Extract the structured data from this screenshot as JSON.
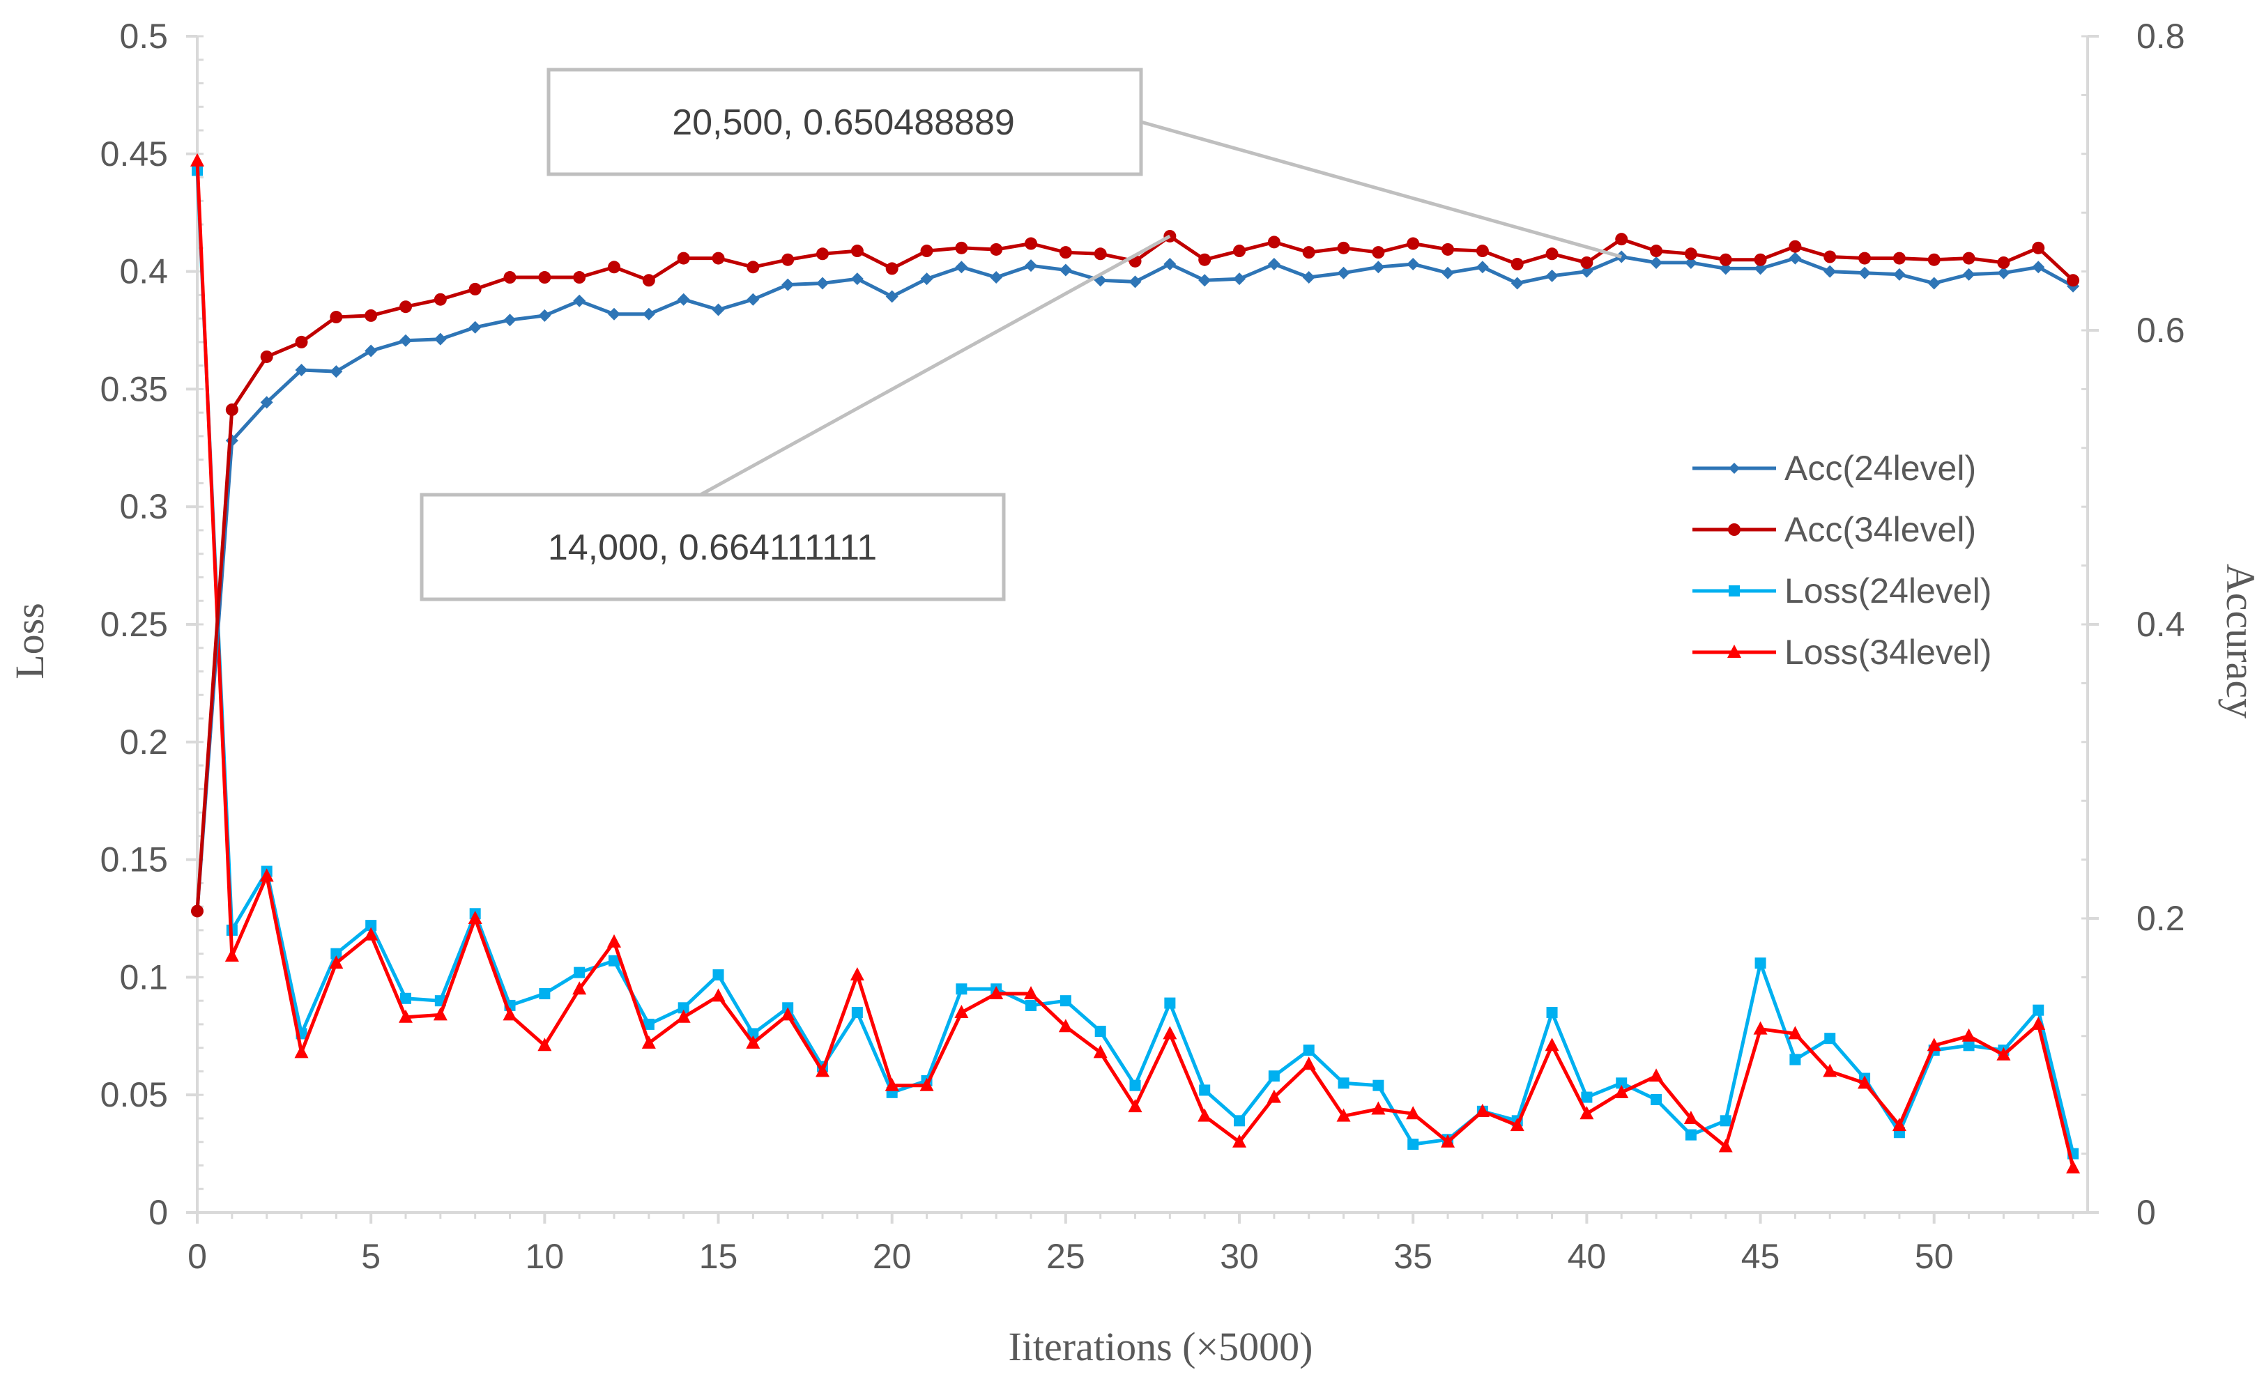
{
  "chart_data": {
    "type": "line",
    "title": "",
    "xlabel": "Iiterations (×5000)",
    "ylabel": "Loss",
    "y2label": "Accuracy",
    "x": [
      0,
      1,
      2,
      3,
      4,
      5,
      6,
      7,
      8,
      9,
      10,
      11,
      12,
      13,
      14,
      15,
      16,
      17,
      18,
      19,
      20,
      21,
      22,
      23,
      24,
      25,
      26,
      27,
      28,
      29,
      30,
      31,
      32,
      33,
      34,
      35,
      36,
      37,
      38,
      39,
      40,
      41,
      42,
      43,
      44,
      45,
      46,
      47,
      48,
      49,
      50,
      51,
      52,
      53,
      54
    ],
    "xlim": [
      0,
      54
    ],
    "ylim": [
      0,
      0.5
    ],
    "y2lim": [
      0,
      0.8
    ],
    "xticks": [
      "0",
      "5",
      "10",
      "15",
      "20",
      "25",
      "30",
      "35",
      "40",
      "45",
      "50"
    ],
    "xtick_values": [
      0,
      5,
      10,
      15,
      20,
      25,
      30,
      35,
      40,
      45,
      50
    ],
    "yticks": [
      "0",
      "0.05",
      "0.1",
      "0.15",
      "0.2",
      "0.25",
      "0.3",
      "0.35",
      "0.4",
      "0.45",
      "0.5"
    ],
    "ytick_values": [
      0,
      0.05,
      0.1,
      0.15,
      0.2,
      0.25,
      0.3,
      0.35,
      0.4,
      0.45,
      0.5
    ],
    "y2ticks": [
      "0",
      "0.2",
      "0.4",
      "0.6",
      "0.8"
    ],
    "y2tick_values": [
      0,
      0.2,
      0.4,
      0.6,
      0.8
    ],
    "legend_position": "right",
    "series": [
      {
        "name": "Acc(24level)",
        "axis": "right",
        "color": "#2e75b6",
        "marker": "diamond",
        "values": [
          0.205,
          0.525,
          0.551,
          0.573,
          0.572,
          0.586,
          0.593,
          0.594,
          0.602,
          0.607,
          0.61,
          0.62,
          0.611,
          0.611,
          0.621,
          0.614,
          0.621,
          0.631,
          0.632,
          0.635,
          0.623,
          0.635,
          0.643,
          0.636,
          0.644,
          0.641,
          0.634,
          0.633,
          0.645,
          0.634,
          0.635,
          0.645,
          0.636,
          0.639,
          0.643,
          0.645,
          0.639,
          0.643,
          0.632,
          0.637,
          0.64,
          0.65,
          0.646,
          0.646,
          0.642,
          0.642,
          0.649,
          0.64,
          0.639,
          0.638,
          0.632,
          0.638,
          0.639,
          0.643,
          0.63
        ]
      },
      {
        "name": "Acc(34level)",
        "axis": "right",
        "color": "#c00000",
        "marker": "circle",
        "values": [
          0.205,
          0.546,
          0.582,
          0.592,
          0.609,
          0.61,
          0.616,
          0.621,
          0.628,
          0.636,
          0.636,
          0.636,
          0.643,
          0.634,
          0.649,
          0.649,
          0.643,
          0.648,
          0.652,
          0.654,
          0.642,
          0.654,
          0.656,
          0.655,
          0.659,
          0.653,
          0.652,
          0.647,
          0.664,
          0.648,
          0.654,
          0.66,
          0.653,
          0.656,
          0.653,
          0.659,
          0.655,
          0.654,
          0.645,
          0.652,
          0.646,
          0.662,
          0.654,
          0.652,
          0.648,
          0.648,
          0.657,
          0.65,
          0.649,
          0.649,
          0.648,
          0.649,
          0.646,
          0.656,
          0.634
        ]
      },
      {
        "name": "Loss(24level)",
        "axis": "left",
        "color": "#00b0f0",
        "marker": "square",
        "values": [
          0.443,
          0.12,
          0.145,
          0.076,
          0.11,
          0.122,
          0.091,
          0.09,
          0.127,
          0.088,
          0.093,
          0.102,
          0.107,
          0.08,
          0.087,
          0.101,
          0.076,
          0.087,
          0.062,
          0.085,
          0.051,
          0.056,
          0.095,
          0.095,
          0.088,
          0.09,
          0.077,
          0.054,
          0.089,
          0.052,
          0.039,
          0.058,
          0.069,
          0.055,
          0.054,
          0.029,
          0.031,
          0.043,
          0.039,
          0.085,
          0.049,
          0.055,
          0.048,
          0.033,
          0.039,
          0.106,
          0.065,
          0.074,
          0.057,
          0.034,
          0.069,
          0.071,
          0.069,
          0.086,
          0.025
        ]
      },
      {
        "name": "Loss(34level)",
        "axis": "left",
        "color": "#ff0000",
        "marker": "triangle",
        "values": [
          0.447,
          0.109,
          0.143,
          0.068,
          0.106,
          0.118,
          0.083,
          0.084,
          0.125,
          0.084,
          0.071,
          0.095,
          0.115,
          0.072,
          0.083,
          0.092,
          0.072,
          0.084,
          0.06,
          0.101,
          0.054,
          0.054,
          0.085,
          0.093,
          0.093,
          0.079,
          0.068,
          0.045,
          0.076,
          0.041,
          0.03,
          0.049,
          0.063,
          0.041,
          0.044,
          0.042,
          0.03,
          0.043,
          0.037,
          0.071,
          0.042,
          0.051,
          0.058,
          0.04,
          0.028,
          0.078,
          0.076,
          0.06,
          0.055,
          0.037,
          0.071,
          0.075,
          0.067,
          0.08,
          0.019
        ]
      }
    ],
    "annotations": [
      {
        "label": "20,500, 0.650488889",
        "series": "Acc(24level)",
        "x": 41,
        "y": 0.65
      },
      {
        "label": "14,000, 0.664111111",
        "series": "Acc(34level)",
        "x": 28,
        "y": 0.664
      }
    ]
  }
}
